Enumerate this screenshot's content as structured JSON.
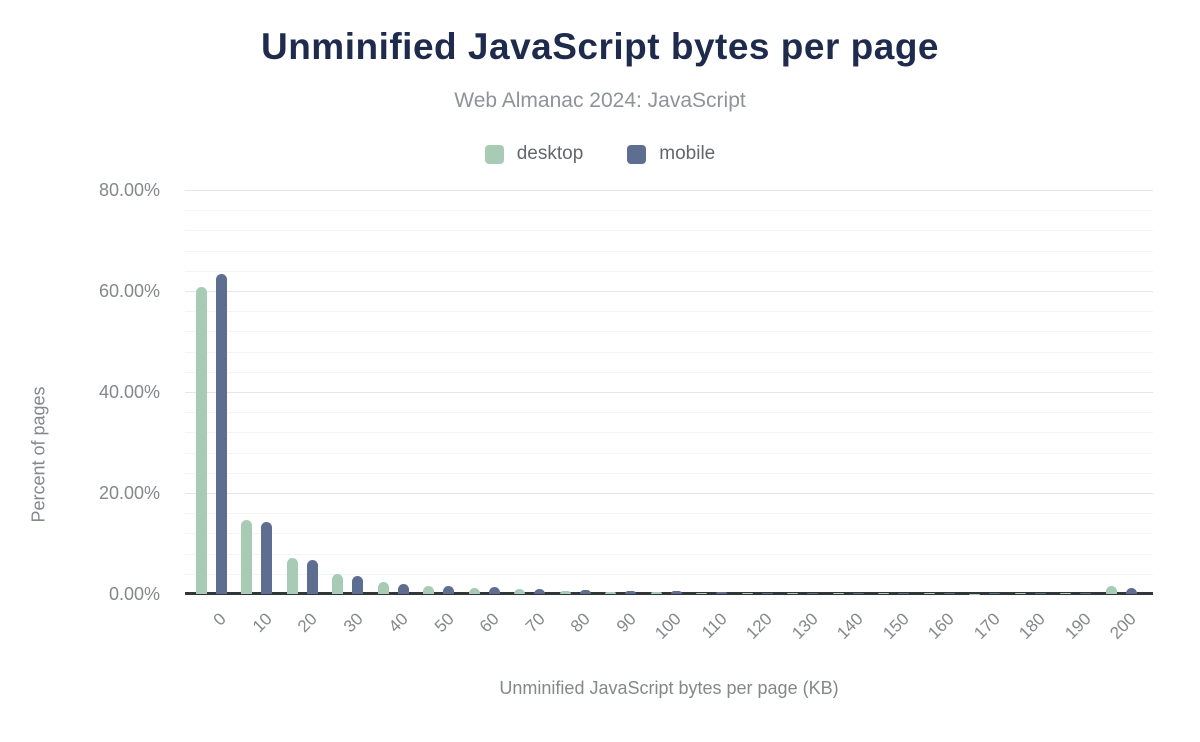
{
  "header": {
    "title": "Unminified JavaScript bytes per page",
    "subtitle": "Web Almanac 2024: JavaScript"
  },
  "legend": [
    {
      "label": "desktop",
      "color": "#a8cbb6"
    },
    {
      "label": "mobile",
      "color": "#5e6e90"
    }
  ],
  "axes": {
    "x_title": "Unminified JavaScript bytes per page (KB)",
    "y_title": "Percent of pages",
    "y_tick_labels": [
      "0.00%",
      "20.00%",
      "40.00%",
      "60.00%",
      "80.00%"
    ]
  },
  "chart_data": {
    "type": "bar",
    "title": "Unminified JavaScript bytes per page",
    "subtitle": "Web Almanac 2024: JavaScript",
    "xlabel": "Unminified JavaScript bytes per page (KB)",
    "ylabel": "Percent of pages",
    "categories": [
      "0",
      "10",
      "20",
      "30",
      "40",
      "50",
      "60",
      "70",
      "80",
      "90",
      "100",
      "110",
      "120",
      "130",
      "140",
      "150",
      "160",
      "170",
      "180",
      "190",
      "200"
    ],
    "series": [
      {
        "name": "desktop",
        "color": "#a8cbb6",
        "values": [
          60.7,
          14.6,
          7.1,
          4.0,
          2.3,
          1.5,
          1.25,
          0.9,
          0.6,
          0.45,
          0.45,
          0.3,
          0.25,
          0.2,
          0.2,
          0.15,
          0.15,
          0.1,
          0.15,
          0.2,
          1.55
        ]
      },
      {
        "name": "mobile",
        "color": "#5e6e90",
        "values": [
          63.4,
          14.2,
          6.8,
          3.5,
          1.9,
          1.65,
          1.4,
          1.05,
          0.75,
          0.6,
          0.55,
          0.35,
          0.3,
          0.25,
          0.2,
          0.2,
          0.15,
          0.15,
          0.2,
          0.3,
          1.25
        ]
      }
    ],
    "ylim": [
      0,
      80
    ],
    "y_major_step": 20,
    "y_minor_step": 4,
    "y_tick_format": "percent_2dp",
    "grid": true,
    "legend_position": "top",
    "x_tick_rotation": -45
  }
}
